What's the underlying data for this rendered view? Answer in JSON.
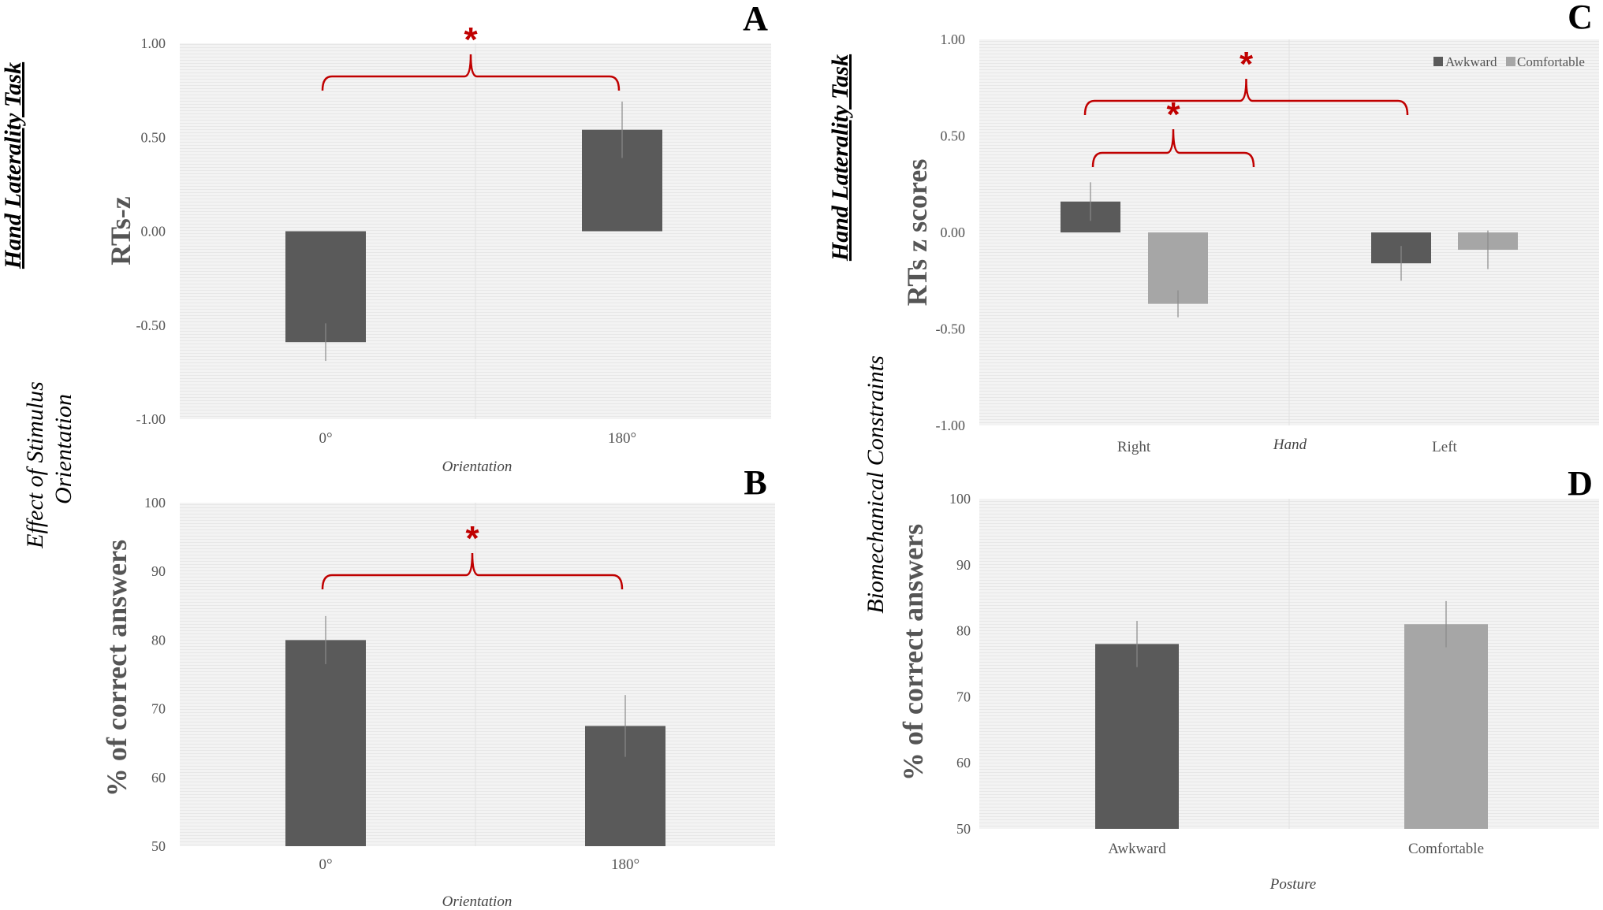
{
  "section_labels": {
    "left_top": "Hand Laterality Task",
    "left_mid_line1": "Effect of Stimulus",
    "left_mid_line2": "Orientation",
    "right_top": "Hand Laterality Task",
    "right_mid": "Biomechanical Constraints"
  },
  "colors": {
    "dark_bar": "#5a5a5a",
    "light_bar": "#a6a6a6",
    "significance": "#c00000",
    "plot_bg": "#f2f2f2"
  },
  "chart_data": [
    {
      "panel": "A",
      "type": "bar",
      "categories": [
        "0°",
        "180°"
      ],
      "values": [
        -0.59,
        0.54
      ],
      "errors": [
        0.1,
        0.15
      ],
      "xlabel": "Orientation",
      "ylabel": "RTs-z",
      "ylim": [
        -1.0,
        1.0
      ],
      "yticks": [
        "-1.00",
        "-0.50",
        "0.00",
        "0.50",
        "1.00"
      ],
      "yticks_values": [
        -1.0,
        -0.5,
        0.0,
        0.5,
        1.0
      ],
      "significance": [
        {
          "from": 0,
          "to": 1,
          "label": "*"
        }
      ]
    },
    {
      "panel": "B",
      "type": "bar",
      "categories": [
        "0°",
        "180°"
      ],
      "values": [
        80,
        67.5
      ],
      "errors": [
        3.5,
        4.5
      ],
      "xlabel": "Orientation",
      "ylabel": "% of correct answers",
      "ylim": [
        50,
        100
      ],
      "yticks": [
        "50",
        "60",
        "70",
        "80",
        "90",
        "100"
      ],
      "yticks_values": [
        50,
        60,
        70,
        80,
        90,
        100
      ],
      "significance": [
        {
          "from": 0,
          "to": 1,
          "label": "*"
        }
      ]
    },
    {
      "panel": "C",
      "type": "bar",
      "categories": [
        "Right",
        "Left"
      ],
      "series": [
        {
          "name": "Awkward",
          "values": [
            0.16,
            -0.16
          ],
          "errors": [
            0.1,
            0.09
          ]
        },
        {
          "name": "Comfortable",
          "values": [
            -0.37,
            -0.09
          ],
          "errors": [
            0.07,
            0.1
          ]
        }
      ],
      "xlabel": "Hand",
      "ylabel": "RTs z scores",
      "ylim": [
        -1.0,
        1.0
      ],
      "yticks": [
        "-1.00",
        "-0.50",
        "0.00",
        "0.50",
        "1.00"
      ],
      "yticks_values": [
        -1.0,
        -0.5,
        0.0,
        0.5,
        1.0
      ],
      "legend_position": "top-right",
      "significance": [
        {
          "label": "*",
          "level": "outer",
          "from": "Right",
          "to": "Left"
        },
        {
          "label": "*",
          "level": "inner",
          "from": "Right-Awkward",
          "to": "Right-Comfortable"
        }
      ]
    },
    {
      "panel": "D",
      "type": "bar",
      "categories": [
        "Awkward",
        "Comfortable"
      ],
      "values": [
        78,
        81
      ],
      "errors": [
        3.5,
        3.5
      ],
      "xlabel": "Posture",
      "ylabel": "% of correct answers",
      "ylim": [
        50,
        100
      ],
      "yticks": [
        "50",
        "60",
        "70",
        "80",
        "90",
        "100"
      ],
      "yticks_values": [
        50,
        60,
        70,
        80,
        90,
        100
      ]
    }
  ]
}
